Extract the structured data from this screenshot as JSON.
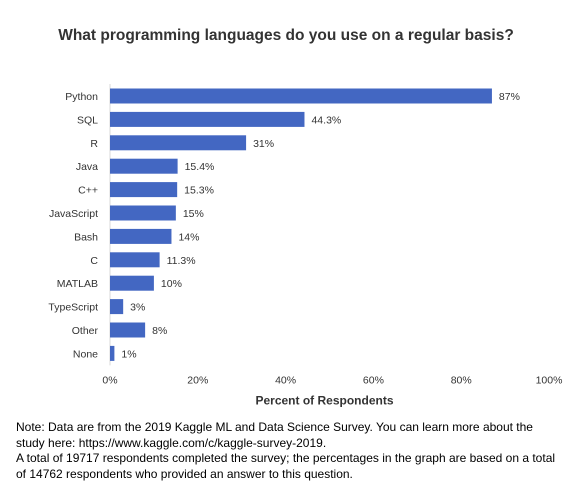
{
  "chart_data": {
    "type": "bar",
    "orientation": "horizontal",
    "title": "What programming languages do you use on a regular basis?",
    "xlabel": "Percent of Respondents",
    "ylabel": "",
    "xlim": [
      0,
      100
    ],
    "x_ticks": [
      0,
      20,
      40,
      60,
      80,
      100
    ],
    "x_tick_labels": [
      "0%",
      "20%",
      "40%",
      "60%",
      "80%",
      "100%"
    ],
    "grid": false,
    "legend": "none",
    "bar_color": "#4367c2",
    "categories": [
      "Python",
      "SQL",
      "R",
      "Java",
      "C++",
      "JavaScript",
      "Bash",
      "C",
      "MATLAB",
      "TypeScript",
      "Other",
      "None"
    ],
    "values": [
      87,
      44.3,
      31,
      15.4,
      15.3,
      15,
      14,
      11.3,
      10,
      3,
      8,
      1
    ],
    "data_labels": [
      "87%",
      "44.3%",
      "31%",
      "15.4%",
      "15.3%",
      "15%",
      "14%",
      "11.3%",
      "10%",
      "3%",
      "8%",
      "1%"
    ]
  },
  "note": {
    "line1": "Note: Data are from the 2019 Kaggle ML and Data Science Survey. You can learn more about the study here: https://www.kaggle.com/c/kaggle-survey-2019.",
    "line2": "A total of 19717 respondents completed the survey; the percentages in the graph are based on a total of 14762 respondents who provided an answer to this question."
  }
}
